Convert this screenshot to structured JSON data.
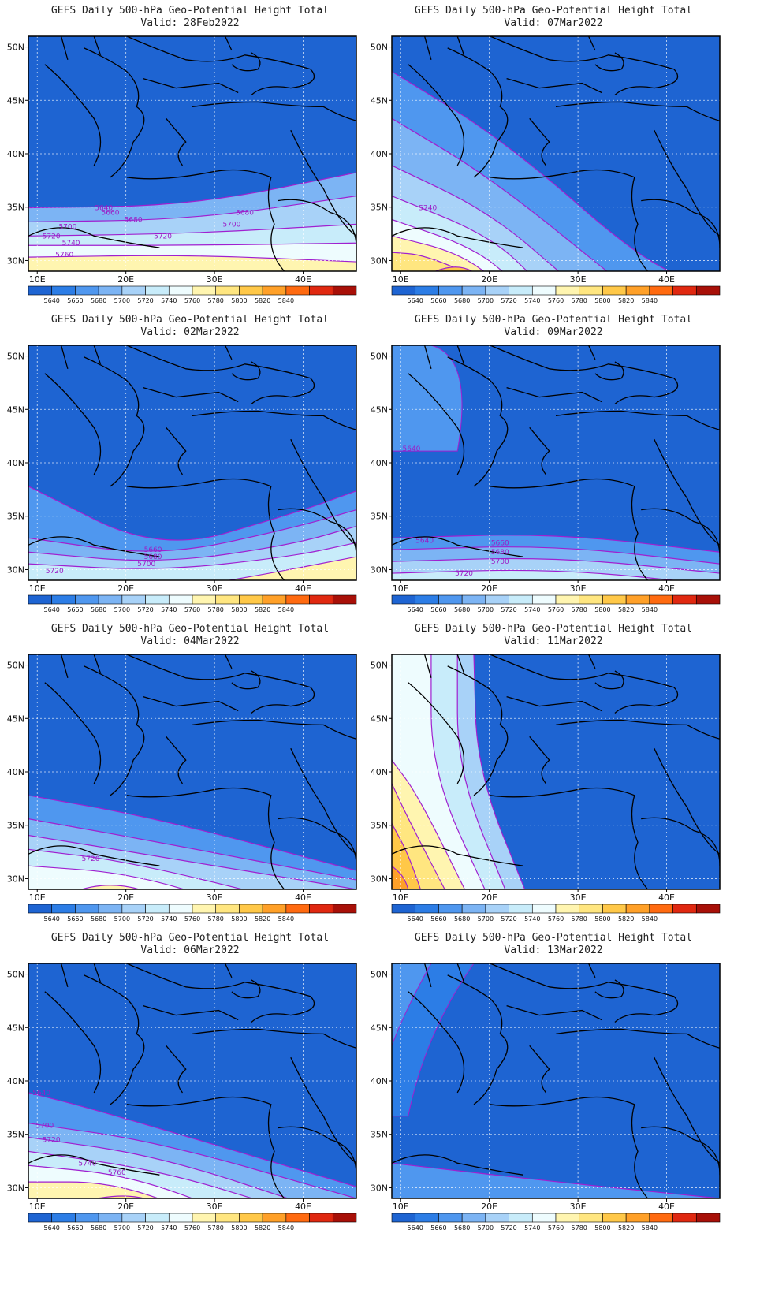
{
  "title_prefix": "GEFS Daily 500-hPa Geo-Potential Height Total",
  "lat_labels": [
    "50N",
    "45N",
    "40N",
    "35N",
    "30N"
  ],
  "lon_labels": [
    "10E",
    "20E",
    "30E",
    "40E"
  ],
  "colorbar": {
    "labels": [
      "5640",
      "5660",
      "5680",
      "5700",
      "5720",
      "5740",
      "5760",
      "5780",
      "5800",
      "5820",
      "5840"
    ],
    "colors": [
      "#1e64d2",
      "#2c7de6",
      "#4f97ef",
      "#7cb4f4",
      "#a8d2f8",
      "#c8ecfa",
      "#eefcfe",
      "#fff5b0",
      "#ffe680",
      "#ffc848",
      "#ffa028",
      "#ff6a10",
      "#e02810",
      "#a81008"
    ]
  },
  "panels": [
    {
      "valid": "Valid: 28Feb2022",
      "contour_labels": [
        "5640",
        "5660",
        "5680",
        "5680",
        "5700",
        "5700",
        "5720",
        "5720",
        "5740",
        "5760"
      ]
    },
    {
      "valid": "Valid: 07Mar2022",
      "contour_labels": [
        "5740"
      ]
    },
    {
      "valid": "Valid: 02Mar2022",
      "contour_labels": [
        "5660",
        "5680",
        "5700",
        "5720"
      ]
    },
    {
      "valid": "Valid: 09Mar2022",
      "contour_labels": [
        "5640",
        "5640",
        "5660",
        "5680",
        "5700",
        "5720"
      ]
    },
    {
      "valid": "Valid: 04Mar2022",
      "contour_labels": [
        "5720"
      ]
    },
    {
      "valid": "Valid: 11Mar2022",
      "contour_labels": []
    },
    {
      "valid": "Valid: 06Mar2022",
      "contour_labels": [
        "5640",
        "5700",
        "5720",
        "5740",
        "5760"
      ]
    },
    {
      "valid": "Valid: 13Mar2022",
      "contour_labels": []
    }
  ]
}
